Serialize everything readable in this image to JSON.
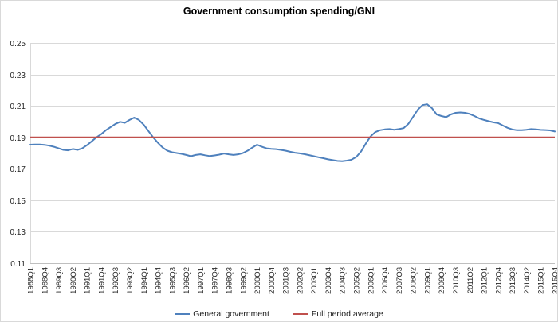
{
  "chart": {
    "title": "Government consumption spending/GNI",
    "legend": [
      {
        "label": "General government",
        "color": "#4f81bd"
      },
      {
        "label": "Full period average",
        "color": "#c0504d"
      }
    ]
  },
  "chart_data": {
    "type": "line",
    "title": "Government consumption spending/GNI",
    "xlabel": "",
    "ylabel": "",
    "ylim": [
      0.11,
      0.25
    ],
    "ytick_step": 0.02,
    "y_tick_labels": [
      "0.25",
      "0.23",
      "0.21",
      "0.19",
      "0.17",
      "0.15",
      "0.13",
      "0.11"
    ],
    "grid": true,
    "legend_position": "bottom",
    "x_tick_every": 3,
    "x_tick_labels": [
      "1988Q1",
      "1988Q4",
      "1989Q3",
      "1990Q2",
      "1991Q1",
      "1991Q4",
      "1992Q3",
      "1993Q2",
      "1994Q1",
      "1994Q4",
      "1995Q3",
      "1996Q2",
      "1997Q1",
      "1997Q4",
      "1998Q3",
      "1999Q2",
      "2000Q1",
      "2000Q4",
      "2001Q3",
      "2002Q2",
      "2003Q1",
      "2003Q4",
      "2004Q3",
      "2005Q2",
      "2006Q1",
      "2006Q4",
      "2007Q3",
      "2008Q2",
      "2009Q1",
      "2009Q4",
      "2010Q3",
      "2011Q2",
      "2012Q1",
      "2012Q4",
      "2013Q3",
      "2014Q2",
      "2015Q1",
      "2015Q4"
    ],
    "categories": [
      "1988Q1",
      "1988Q2",
      "1988Q3",
      "1988Q4",
      "1989Q1",
      "1989Q2",
      "1989Q3",
      "1989Q4",
      "1990Q1",
      "1990Q2",
      "1990Q3",
      "1990Q4",
      "1991Q1",
      "1991Q2",
      "1991Q3",
      "1991Q4",
      "1992Q1",
      "1992Q2",
      "1992Q3",
      "1992Q4",
      "1993Q1",
      "1993Q2",
      "1993Q3",
      "1993Q4",
      "1994Q1",
      "1994Q2",
      "1994Q3",
      "1994Q4",
      "1995Q1",
      "1995Q2",
      "1995Q3",
      "1995Q4",
      "1996Q1",
      "1996Q2",
      "1996Q3",
      "1996Q4",
      "1997Q1",
      "1997Q2",
      "1997Q3",
      "1997Q4",
      "1998Q1",
      "1998Q2",
      "1998Q3",
      "1998Q4",
      "1999Q1",
      "1999Q2",
      "1999Q3",
      "1999Q4",
      "2000Q1",
      "2000Q2",
      "2000Q3",
      "2000Q4",
      "2001Q1",
      "2001Q2",
      "2001Q3",
      "2001Q4",
      "2002Q1",
      "2002Q2",
      "2002Q3",
      "2002Q4",
      "2003Q1",
      "2003Q2",
      "2003Q3",
      "2003Q4",
      "2004Q1",
      "2004Q2",
      "2004Q3",
      "2004Q4",
      "2005Q1",
      "2005Q2",
      "2005Q3",
      "2005Q4",
      "2006Q1",
      "2006Q2",
      "2006Q3",
      "2006Q4",
      "2007Q1",
      "2007Q2",
      "2007Q3",
      "2007Q4",
      "2008Q1",
      "2008Q2",
      "2008Q3",
      "2008Q4",
      "2009Q1",
      "2009Q2",
      "2009Q3",
      "2009Q4",
      "2010Q1",
      "2010Q2",
      "2010Q3",
      "2010Q4",
      "2011Q1",
      "2011Q2",
      "2011Q3",
      "2011Q4",
      "2012Q1",
      "2012Q2",
      "2012Q3",
      "2012Q4",
      "2013Q1",
      "2013Q2",
      "2013Q3",
      "2013Q4",
      "2014Q1",
      "2014Q2",
      "2014Q3",
      "2014Q4",
      "2015Q1",
      "2015Q2",
      "2015Q3",
      "2015Q4"
    ],
    "series": [
      {
        "name": "General government",
        "color": "#4f81bd",
        "values": [
          0.1853,
          0.1854,
          0.1854,
          0.1852,
          0.1847,
          0.184,
          0.183,
          0.182,
          0.1817,
          0.1826,
          0.182,
          0.183,
          0.185,
          0.1875,
          0.19,
          0.192,
          0.1945,
          0.1965,
          0.1985,
          0.1998,
          0.1992,
          0.201,
          0.2025,
          0.201,
          0.198,
          0.194,
          0.19,
          0.1865,
          0.1835,
          0.1815,
          0.1805,
          0.18,
          0.1795,
          0.1788,
          0.178,
          0.1788,
          0.1792,
          0.1786,
          0.1781,
          0.1785,
          0.179,
          0.1797,
          0.1792,
          0.1788,
          0.1792,
          0.18,
          0.1815,
          0.1835,
          0.1853,
          0.184,
          0.183,
          0.1827,
          0.1825,
          0.182,
          0.1815,
          0.1808,
          0.1802,
          0.1798,
          0.1793,
          0.1787,
          0.178,
          0.1773,
          0.1767,
          0.176,
          0.1755,
          0.175,
          0.1748,
          0.1752,
          0.1758,
          0.1775,
          0.181,
          0.186,
          0.1905,
          0.1933,
          0.1945,
          0.195,
          0.1952,
          0.1948,
          0.1952,
          0.1958,
          0.1985,
          0.203,
          0.2075,
          0.2105,
          0.211,
          0.2085,
          0.2045,
          0.2035,
          0.2028,
          0.2045,
          0.2055,
          0.2058,
          0.2055,
          0.2048,
          0.2035,
          0.202,
          0.201,
          0.2002,
          0.1995,
          0.199,
          0.1975,
          0.196,
          0.195,
          0.1945,
          0.1945,
          0.1948,
          0.1952,
          0.195,
          0.1947,
          0.1946,
          0.1944,
          0.1937
        ]
      },
      {
        "name": "Full period average",
        "color": "#c0504d",
        "constant": 0.19
      }
    ]
  }
}
